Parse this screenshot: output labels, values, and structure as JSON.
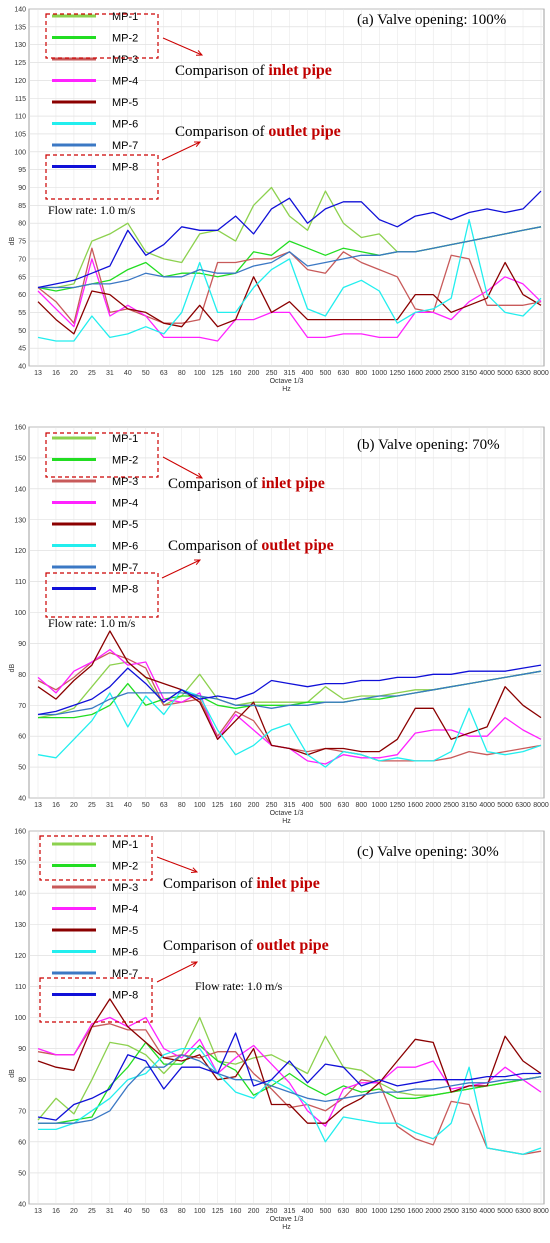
{
  "chart_data": [
    {
      "type": "line",
      "title": "(a) Valve opening: 100%",
      "xlabel": "Octave 1/3",
      "xunit": "Hz",
      "ylabel": "dB",
      "ylim": [
        40,
        140
      ],
      "yticks": [
        40,
        45,
        50,
        55,
        60,
        65,
        70,
        75,
        80,
        85,
        90,
        95,
        100,
        105,
        110,
        115,
        120,
        125,
        130,
        135,
        140
      ],
      "categories": [
        "13",
        "16",
        "20",
        "25",
        "31",
        "40",
        "50",
        "63",
        "80",
        "100",
        "125",
        "160",
        "200",
        "250",
        "315",
        "400",
        "500",
        "630",
        "800",
        "1000",
        "1250",
        "1600",
        "2000",
        "2500",
        "3150",
        "4000",
        "5000",
        "6300",
        "8000"
      ],
      "grid": true,
      "legend_position": "top-left",
      "annotations": {
        "inlet_prefix": "Comparison of ",
        "inlet_bold": "inlet pipe",
        "outlet_prefix": "Comparison of ",
        "outlet_bold": "outlet pipe",
        "flow": "Flow rate: 1.0 m/s"
      },
      "series": [
        {
          "name": "MP-1",
          "color": "#8cd14e",
          "values": [
            62,
            62,
            63,
            75,
            77,
            80,
            72,
            70,
            69,
            77,
            78,
            75,
            85,
            90,
            82,
            78,
            89,
            80,
            76,
            77,
            72,
            72,
            73,
            74,
            75,
            76,
            77,
            78,
            79
          ]
        },
        {
          "name": "MP-2",
          "color": "#22dd22",
          "values": [
            62,
            61,
            62,
            63,
            64,
            67,
            69,
            65,
            66,
            66,
            65,
            66,
            72,
            71,
            75,
            73,
            71,
            73,
            72,
            71,
            72,
            72,
            73,
            74,
            75,
            76,
            77,
            78,
            79
          ]
        },
        {
          "name": "MP-3",
          "color": "#c85a5a",
          "values": [
            62,
            58,
            52,
            73,
            55,
            56,
            54,
            52,
            52,
            53,
            69,
            69,
            70,
            70,
            72,
            67,
            66,
            72,
            69,
            67,
            65,
            56,
            55,
            71,
            70,
            57,
            57,
            57,
            58
          ]
        },
        {
          "name": "MP-4",
          "color": "#ff22ff",
          "values": [
            61,
            56,
            51,
            70,
            54,
            57,
            54,
            48,
            48,
            48,
            47,
            53,
            53,
            55,
            55,
            48,
            48,
            49,
            49,
            48,
            48,
            55,
            55,
            53,
            58,
            61,
            65,
            63,
            58
          ]
        },
        {
          "name": "MP-5",
          "color": "#8b0000",
          "values": [
            58,
            53,
            49,
            61,
            60,
            56,
            55,
            52,
            51,
            57,
            51,
            53,
            65,
            55,
            58,
            53,
            53,
            53,
            53,
            53,
            53,
            60,
            60,
            55,
            57,
            59,
            69,
            60,
            57
          ]
        },
        {
          "name": "MP-6",
          "color": "#22eeee",
          "values": [
            48,
            47,
            47,
            54,
            48,
            49,
            51,
            49,
            55,
            69,
            55,
            55,
            62,
            67,
            70,
            56,
            54,
            62,
            64,
            61,
            52,
            55,
            56,
            59,
            81,
            60,
            55,
            54,
            59
          ]
        },
        {
          "name": "MP-7",
          "color": "#3b78c4",
          "values": [
            62,
            62,
            62,
            63,
            63,
            64,
            66,
            65,
            65,
            67,
            66,
            66,
            68,
            69,
            72,
            68,
            69,
            70,
            71,
            71,
            72,
            72,
            73,
            74,
            75,
            76,
            77,
            78,
            79
          ]
        },
        {
          "name": "MP-8",
          "color": "#1010d8",
          "values": [
            62,
            63,
            64,
            66,
            68,
            78,
            71,
            74,
            79,
            78,
            78,
            82,
            77,
            84,
            87,
            80,
            84,
            86,
            86,
            81,
            79,
            82,
            83,
            81,
            83,
            84,
            83,
            84,
            89
          ]
        }
      ]
    },
    {
      "type": "line",
      "title": "(b) Valve opening: 70%",
      "xlabel": "Octave 1/3",
      "xunit": "Hz",
      "ylabel": "dB",
      "ylim": [
        40,
        160
      ],
      "yticks": [
        40,
        50,
        60,
        70,
        80,
        90,
        100,
        110,
        120,
        130,
        140,
        150,
        160
      ],
      "categories": [
        "13",
        "16",
        "20",
        "25",
        "31",
        "40",
        "50",
        "63",
        "80",
        "100",
        "125",
        "160",
        "200",
        "250",
        "315",
        "400",
        "500",
        "630",
        "800",
        "1000",
        "1250",
        "1600",
        "2000",
        "2500",
        "3150",
        "4000",
        "5000",
        "6300",
        "8000"
      ],
      "grid": true,
      "legend_position": "top-left",
      "annotations": {
        "inlet_prefix": "Comparison of ",
        "inlet_bold": "inlet pipe",
        "outlet_prefix": "Comparison of ",
        "outlet_bold": "outlet pipe",
        "flow": "Flow rate: 1.0 m/s"
      },
      "series": [
        {
          "name": "MP-1",
          "color": "#8cd14e",
          "values": [
            66,
            67,
            69,
            76,
            83,
            84,
            79,
            70,
            73,
            80,
            72,
            70,
            71,
            71,
            71,
            71,
            76,
            72,
            73,
            73,
            74,
            75,
            75,
            76,
            77,
            78,
            79,
            80,
            81
          ]
        },
        {
          "name": "MP-2",
          "color": "#22dd22",
          "values": [
            66,
            66,
            66,
            67,
            70,
            77,
            70,
            72,
            73,
            73,
            70,
            69,
            70,
            70,
            70,
            71,
            71,
            71,
            72,
            72,
            73,
            74,
            75,
            76,
            77,
            78,
            79,
            80,
            81
          ]
        },
        {
          "name": "MP-3",
          "color": "#c85a5a",
          "values": [
            78,
            75,
            79,
            84,
            87,
            85,
            82,
            70,
            71,
            72,
            60,
            68,
            65,
            57,
            56,
            55,
            56,
            55,
            54,
            52,
            52,
            52,
            52,
            53,
            55,
            54,
            55,
            56,
            57
          ]
        },
        {
          "name": "MP-4",
          "color": "#ff22ff",
          "values": [
            79,
            74,
            81,
            84,
            88,
            83,
            84,
            72,
            71,
            74,
            59,
            67,
            62,
            57,
            56,
            52,
            51,
            54,
            53,
            53,
            54,
            61,
            62,
            62,
            60,
            60,
            66,
            62,
            59
          ]
        },
        {
          "name": "MP-5",
          "color": "#8b0000",
          "values": [
            76,
            72,
            78,
            83,
            94,
            84,
            79,
            77,
            75,
            71,
            59,
            65,
            71,
            57,
            56,
            54,
            56,
            56,
            55,
            55,
            59,
            69,
            69,
            59,
            61,
            63,
            76,
            70,
            66
          ]
        },
        {
          "name": "MP-6",
          "color": "#22eeee",
          "values": [
            54,
            53,
            59,
            65,
            74,
            63,
            73,
            67,
            75,
            73,
            62,
            54,
            57,
            62,
            64,
            54,
            50,
            55,
            54,
            52,
            53,
            52,
            52,
            55,
            69,
            55,
            54,
            55,
            57
          ]
        },
        {
          "name": "MP-7",
          "color": "#3b78c4",
          "values": [
            67,
            67,
            68,
            69,
            72,
            74,
            74,
            74,
            74,
            73,
            72,
            70,
            70,
            69,
            70,
            70,
            71,
            71,
            72,
            73,
            73,
            74,
            75,
            76,
            77,
            78,
            79,
            80,
            81
          ]
        },
        {
          "name": "MP-8",
          "color": "#1010d8",
          "values": [
            67,
            68,
            70,
            72,
            76,
            82,
            77,
            71,
            75,
            72,
            73,
            72,
            74,
            78,
            77,
            76,
            77,
            77,
            78,
            78,
            79,
            79,
            80,
            80,
            81,
            81,
            81,
            82,
            83
          ]
        }
      ]
    },
    {
      "type": "line",
      "title": "(c) Valve opening: 30%",
      "xlabel": "Octave 1/3",
      "xunit": "Hz",
      "ylabel": "dB",
      "ylim": [
        40,
        160
      ],
      "yticks": [
        40,
        50,
        60,
        70,
        80,
        90,
        100,
        110,
        120,
        130,
        140,
        150,
        160
      ],
      "categories": [
        "13",
        "16",
        "20",
        "25",
        "31",
        "40",
        "50",
        "63",
        "80",
        "100",
        "125",
        "160",
        "200",
        "250",
        "315",
        "400",
        "500",
        "630",
        "800",
        "1000",
        "1250",
        "1600",
        "2000",
        "2500",
        "3150",
        "4000",
        "5000",
        "6300",
        "8000"
      ],
      "grid": true,
      "legend_position": "top-left",
      "annotations": {
        "inlet_prefix": "Comparison of ",
        "inlet_bold": "inlet pipe",
        "outlet_prefix": "Comparison of ",
        "outlet_bold": "outlet pipe",
        "flow": "Flow rate: 1.0 m/s"
      },
      "series": [
        {
          "name": "MP-1",
          "color": "#8cd14e",
          "values": [
            67,
            74,
            69,
            80,
            92,
            91,
            88,
            82,
            88,
            100,
            86,
            85,
            87,
            88,
            85,
            82,
            94,
            84,
            83,
            79,
            76,
            75,
            75,
            76,
            77,
            78,
            79,
            80,
            81
          ]
        },
        {
          "name": "MP-2",
          "color": "#22dd22",
          "values": [
            66,
            66,
            67,
            68,
            78,
            84,
            92,
            85,
            85,
            91,
            86,
            83,
            75,
            78,
            82,
            78,
            75,
            78,
            76,
            77,
            74,
            74,
            75,
            76,
            77,
            78,
            79,
            80,
            81
          ]
        },
        {
          "name": "MP-3",
          "color": "#c85a5a",
          "values": [
            89,
            88,
            88,
            97,
            98,
            96,
            96,
            87,
            88,
            87,
            89,
            89,
            82,
            77,
            71,
            72,
            70,
            74,
            80,
            79,
            65,
            61,
            59,
            73,
            72,
            58,
            57,
            56,
            57
          ]
        },
        {
          "name": "MP-4",
          "color": "#ff22ff",
          "values": [
            90,
            88,
            88,
            98,
            100,
            97,
            100,
            90,
            87,
            93,
            82,
            87,
            91,
            85,
            79,
            70,
            65,
            77,
            79,
            79,
            84,
            84,
            86,
            77,
            78,
            79,
            84,
            80,
            76
          ]
        },
        {
          "name": "MP-5",
          "color": "#8b0000",
          "values": [
            86,
            84,
            83,
            97,
            106,
            97,
            92,
            87,
            86,
            88,
            80,
            81,
            90,
            72,
            72,
            66,
            66,
            71,
            74,
            79,
            86,
            93,
            92,
            76,
            78,
            78,
            94,
            86,
            82
          ]
        },
        {
          "name": "MP-6",
          "color": "#22eeee",
          "values": [
            64,
            64,
            66,
            70,
            74,
            80,
            82,
            88,
            90,
            90,
            82,
            76,
            74,
            80,
            77,
            72,
            60,
            68,
            67,
            66,
            66,
            63,
            61,
            66,
            84,
            58,
            57,
            56,
            58
          ]
        },
        {
          "name": "MP-7",
          "color": "#3b78c4",
          "values": [
            66,
            66,
            66,
            67,
            70,
            78,
            84,
            84,
            88,
            86,
            82,
            80,
            80,
            78,
            76,
            74,
            73,
            74,
            75,
            76,
            76,
            77,
            77,
            78,
            79,
            79,
            80,
            80,
            81
          ]
        },
        {
          "name": "MP-8",
          "color": "#1010d8",
          "values": [
            68,
            67,
            72,
            74,
            77,
            88,
            86,
            77,
            84,
            84,
            82,
            95,
            78,
            80,
            86,
            79,
            85,
            84,
            78,
            80,
            78,
            79,
            80,
            80,
            80,
            81,
            81,
            82,
            82
          ]
        }
      ]
    }
  ]
}
